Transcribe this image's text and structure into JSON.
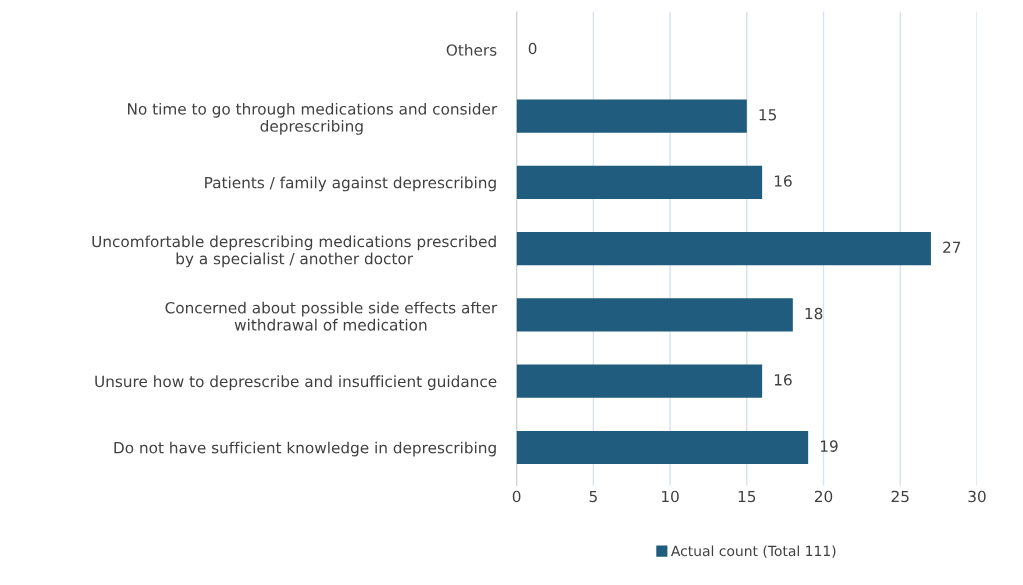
{
  "chart_data": {
    "type": "bar",
    "orientation": "horizontal",
    "categories": [
      "Others",
      "No time to go through medications and consider\ndeprescribing",
      "Patients / family against deprescribing",
      "Uncomfortable deprescribing medications prescribed\nby a specialist / another doctor",
      "Concerned about possible side effects after\nwithdrawal of medication",
      "Unsure how to deprescribe and insufficient guidance",
      "Do not have sufficient knowledge in deprescribing"
    ],
    "series": [
      {
        "name": "Actual count (Total 111)",
        "color": "#1f5c7e",
        "values": [
          0,
          15,
          16,
          27,
          18,
          16,
          19
        ]
      }
    ],
    "xlim": [
      0,
      30
    ],
    "xticks": [
      0,
      5,
      10,
      15,
      20,
      25,
      30
    ],
    "grid": "x",
    "legend": "bottom",
    "data_labels": true
  }
}
